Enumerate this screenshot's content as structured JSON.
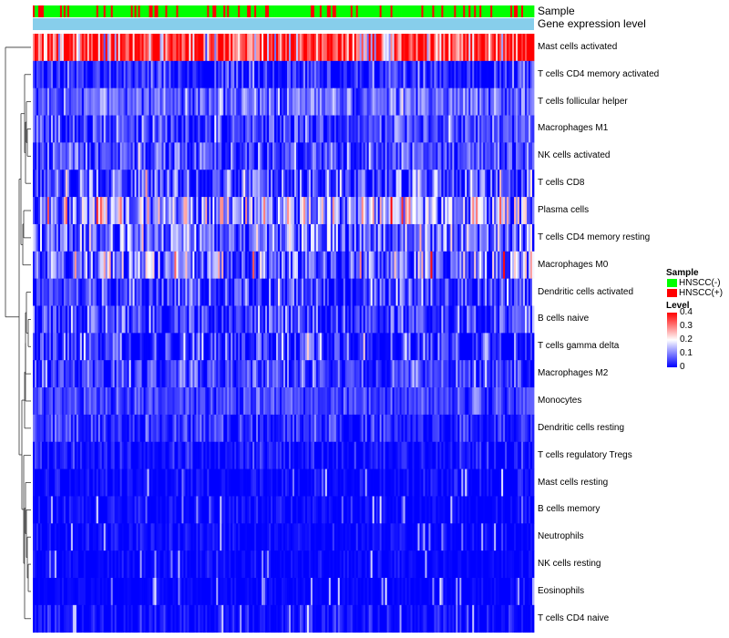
{
  "chart_data": {
    "type": "heatmap",
    "title": "",
    "annotations": [
      {
        "name": "Sample",
        "type": "categorical"
      },
      {
        "name": "Gene expression level",
        "type": "continuous"
      }
    ],
    "rows": [
      {
        "label": "Mast cells activated",
        "mean": 0.33,
        "spread": 0.08
      },
      {
        "label": "T cells CD4 memory activated",
        "mean": 0.02,
        "spread": 0.05
      },
      {
        "label": "T cells follicular helper",
        "mean": 0.08,
        "spread": 0.04
      },
      {
        "label": "Macrophages M1",
        "mean": 0.05,
        "spread": 0.05
      },
      {
        "label": "NK cells activated",
        "mean": 0.05,
        "spread": 0.05
      },
      {
        "label": "T cells CD8",
        "mean": 0.05,
        "spread": 0.08
      },
      {
        "label": "Plasma cells",
        "mean": 0.13,
        "spread": 0.09
      },
      {
        "label": "T cells CD4 memory resting",
        "mean": 0.08,
        "spread": 0.07
      },
      {
        "label": "Macrophages M0",
        "mean": 0.09,
        "spread": 0.09
      },
      {
        "label": "Dendritic cells activated",
        "mean": 0.04,
        "spread": 0.06
      },
      {
        "label": "B cells naive",
        "mean": 0.04,
        "spread": 0.06
      },
      {
        "label": "T cells gamma delta",
        "mean": 0.03,
        "spread": 0.06
      },
      {
        "label": "Macrophages M2",
        "mean": 0.04,
        "spread": 0.05
      },
      {
        "label": "Monocytes",
        "mean": 0.05,
        "spread": 0.03
      },
      {
        "label": "Dendritic cells resting",
        "mean": 0.03,
        "spread": 0.04
      },
      {
        "label": "T cells regulatory  Tregs",
        "mean": 0.01,
        "spread": 0.03
      },
      {
        "label": "Mast cells resting",
        "mean": 0.003,
        "spread": 0.02
      },
      {
        "label": "B cells memory",
        "mean": 0.003,
        "spread": 0.02
      },
      {
        "label": "Neutrophils",
        "mean": 0.003,
        "spread": 0.02
      },
      {
        "label": "NK cells resting",
        "mean": 0.002,
        "spread": 0.015
      },
      {
        "label": "Eosinophils",
        "mean": 0.001,
        "spread": 0.01
      },
      {
        "label": "T cells CD4 naive",
        "mean": 0.005,
        "spread": 0.03
      }
    ],
    "n_samples": 276,
    "sample_groups": [
      {
        "name": "HNSCC(-)",
        "color": "#00ff00"
      },
      {
        "name": "HNSCC(+)",
        "color": "#ff0000"
      }
    ],
    "sample_positive_fraction": 0.18,
    "color_scale": {
      "min": 0,
      "max": 0.4,
      "colors": [
        "#0000ff",
        "#ffffff",
        "#ff0000"
      ],
      "ticks": [
        "0",
        "0.1",
        "0.2",
        "0.3",
        "0.4"
      ]
    },
    "legend": {
      "sample_title": "Sample",
      "level_title": "Level",
      "position": "right"
    },
    "colors": {
      "annotation_bar": "#87ceeb",
      "dendrogram": "#333333"
    }
  }
}
